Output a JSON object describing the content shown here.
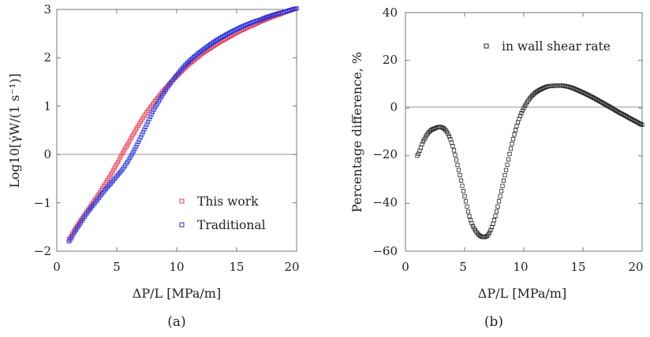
{
  "chart_data": [
    {
      "type": "scatter",
      "panel_label": "(a)",
      "xlabel": "ΔP/L [MPa/m]",
      "ylabel": "Log10[γ̇W/(1 s⁻¹)]",
      "xlim": [
        0,
        20
      ],
      "ylim": [
        -2,
        3
      ],
      "xticks": [
        "0",
        "5",
        "10",
        "15",
        "20"
      ],
      "yticks": [
        "−2",
        "−1",
        "0",
        "1",
        "2",
        "3"
      ],
      "zero_line": true,
      "legend_position": "bottom-right",
      "series": [
        {
          "name": "This work",
          "color": "#e8384f",
          "marker": "square",
          "x": [
            1.0,
            1.5,
            2.0,
            2.5,
            3.0,
            3.5,
            4.0,
            4.5,
            5.0,
            5.5,
            6.0,
            6.5,
            7.0,
            7.5,
            8.0,
            8.5,
            9.0,
            9.5,
            10.0,
            10.5,
            11.0,
            11.5,
            12.0,
            12.5,
            13.0,
            13.5,
            14.0,
            14.5,
            15.0,
            15.5,
            16.0,
            16.5,
            17.0,
            17.5,
            18.0,
            18.5,
            19.0,
            19.5,
            20.0
          ],
          "y": [
            -1.75,
            -1.55,
            -1.36,
            -1.18,
            -1.0,
            -0.82,
            -0.62,
            -0.42,
            -0.2,
            0.03,
            0.25,
            0.47,
            0.68,
            0.87,
            1.04,
            1.2,
            1.35,
            1.49,
            1.62,
            1.74,
            1.86,
            1.96,
            2.06,
            2.15,
            2.23,
            2.31,
            2.38,
            2.45,
            2.52,
            2.58,
            2.64,
            2.69,
            2.75,
            2.8,
            2.85,
            2.89,
            2.94,
            2.98,
            3.02
          ]
        },
        {
          "name": "Traditional",
          "color": "#2233dd",
          "marker": "square",
          "x": [
            1.0,
            1.5,
            2.0,
            2.5,
            3.0,
            3.5,
            4.0,
            4.5,
            5.0,
            5.5,
            6.0,
            6.5,
            7.0,
            7.5,
            8.0,
            8.5,
            9.0,
            9.5,
            10.0,
            10.5,
            11.0,
            11.5,
            12.0,
            12.5,
            13.0,
            13.5,
            14.0,
            14.5,
            15.0,
            15.5,
            16.0,
            16.5,
            17.0,
            17.5,
            18.0,
            18.5,
            19.0,
            19.5,
            20.0
          ],
          "y": [
            -1.8,
            -1.6,
            -1.41,
            -1.22,
            -1.06,
            -0.9,
            -0.74,
            -0.6,
            -0.45,
            -0.3,
            -0.11,
            0.11,
            0.36,
            0.62,
            0.88,
            1.1,
            1.3,
            1.48,
            1.64,
            1.79,
            1.92,
            2.03,
            2.13,
            2.22,
            2.31,
            2.39,
            2.46,
            2.53,
            2.59,
            2.65,
            2.7,
            2.75,
            2.79,
            2.84,
            2.88,
            2.92,
            2.95,
            2.99,
            3.02
          ]
        }
      ]
    },
    {
      "type": "scatter",
      "panel_label": "(b)",
      "xlabel": "ΔP/L [MPa/m]",
      "ylabel": "Percentage difference, %",
      "xlim": [
        0,
        20
      ],
      "ylim": [
        -60,
        40
      ],
      "xticks": [
        "0",
        "5",
        "10",
        "15",
        "20"
      ],
      "yticks": [
        "−60",
        "−40",
        "−20",
        "0",
        "20",
        "40"
      ],
      "zero_line": true,
      "legend_position": "top-right",
      "series": [
        {
          "name": "in wall shear rate",
          "color": "#222222",
          "marker": "square",
          "x": [
            1.0,
            1.5,
            2.0,
            2.5,
            3.0,
            3.5,
            4.0,
            4.5,
            5.0,
            5.5,
            6.0,
            6.5,
            7.0,
            7.5,
            8.0,
            8.5,
            9.0,
            9.5,
            10.0,
            10.5,
            11.0,
            11.5,
            12.0,
            12.5,
            13.0,
            13.5,
            14.0,
            14.5,
            15.0,
            15.5,
            16.0,
            16.5,
            17.0,
            17.5,
            18.0,
            18.5,
            19.0,
            19.5,
            20.0
          ],
          "y": [
            -20.0,
            -14.0,
            -10.0,
            -8.5,
            -8.0,
            -10.0,
            -16.0,
            -26.0,
            -37.0,
            -47.0,
            -52.0,
            -54.0,
            -53.0,
            -47.0,
            -37.0,
            -26.0,
            -15.0,
            -6.0,
            0.0,
            4.0,
            6.5,
            8.0,
            9.0,
            9.3,
            9.4,
            9.2,
            8.6,
            7.6,
            6.5,
            5.3,
            4.0,
            2.6,
            1.2,
            -0.2,
            -1.7,
            -3.0,
            -4.4,
            -5.7,
            -7.0
          ]
        }
      ]
    }
  ]
}
